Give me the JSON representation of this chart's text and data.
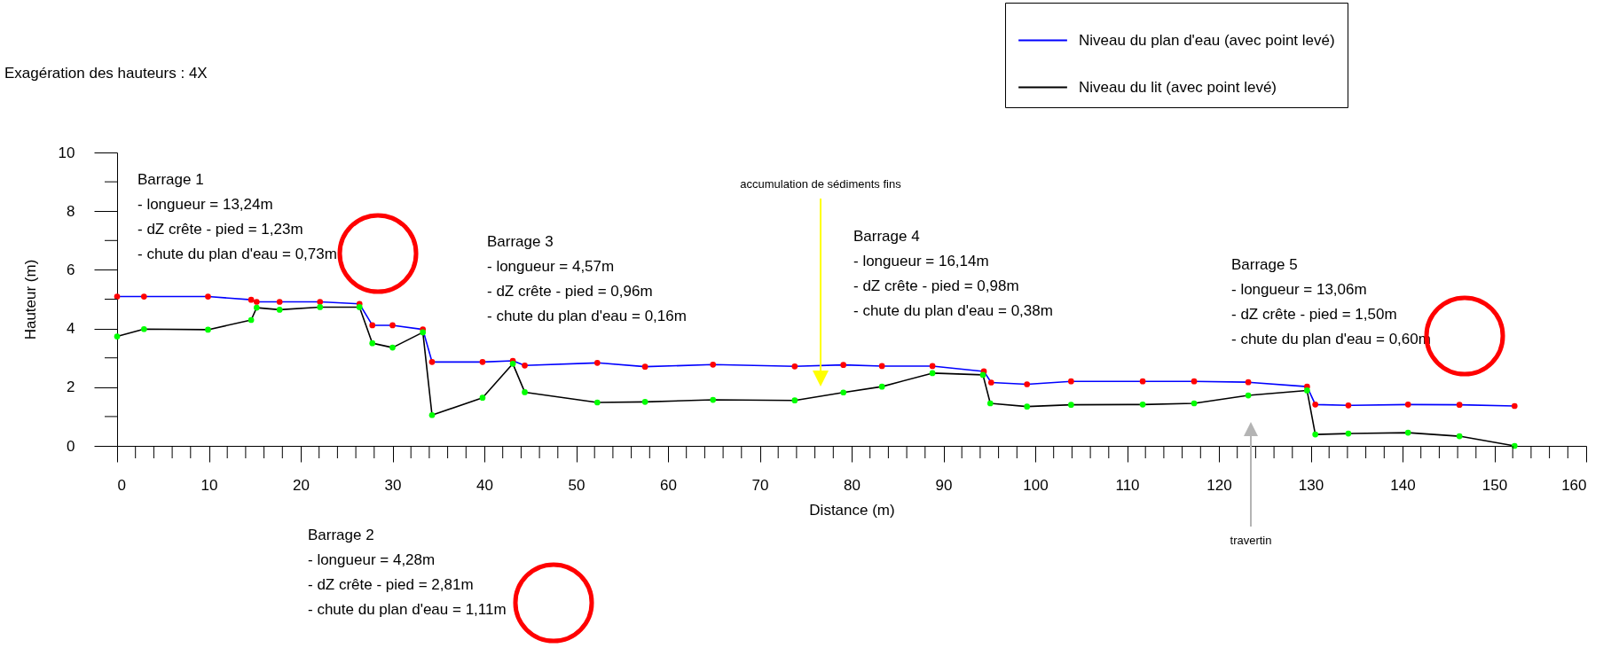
{
  "chart_data": {
    "type": "line",
    "subtitle": "Exagération des hauteurs : 4X",
    "xlabel": "Distance (m)",
    "ylabel": "Hauteur (m)",
    "xlim": [
      0,
      160
    ],
    "ylim": [
      0,
      10
    ],
    "xticks": [
      0,
      {
        "value": 2,
        "label": null
      },
      {
        "value": 4,
        "label": null
      },
      {
        "value": 6,
        "label": null
      },
      {
        "value": 8,
        "label": null
      },
      10,
      {
        "value": 12,
        "label": null
      },
      {
        "value": 14,
        "label": null
      },
      {
        "value": 16,
        "label": null
      },
      {
        "value": 18,
        "label": null
      },
      20,
      {
        "value": 22,
        "label": null
      },
      {
        "value": 24,
        "label": null
      },
      {
        "value": 26,
        "label": null
      },
      {
        "value": 28,
        "label": null
      },
      30,
      {
        "value": 32,
        "label": null
      },
      {
        "value": 34,
        "label": null
      },
      {
        "value": 36,
        "label": null
      },
      {
        "value": 38,
        "label": null
      },
      40,
      {
        "value": 42,
        "label": null
      },
      {
        "value": 44,
        "label": null
      },
      {
        "value": 46,
        "label": null
      },
      {
        "value": 48,
        "label": null
      },
      50,
      {
        "value": 52,
        "label": null
      },
      {
        "value": 54,
        "label": null
      },
      {
        "value": 56,
        "label": null
      },
      {
        "value": 58,
        "label": null
      },
      60,
      {
        "value": 62,
        "label": null
      },
      {
        "value": 64,
        "label": null
      },
      {
        "value": 66,
        "label": null
      },
      {
        "value": 68,
        "label": null
      },
      70,
      {
        "value": 72,
        "label": null
      },
      {
        "value": 74,
        "label": null
      },
      {
        "value": 76,
        "label": null
      },
      {
        "value": 78,
        "label": null
      },
      80,
      {
        "value": 82,
        "label": null
      },
      {
        "value": 84,
        "label": null
      },
      {
        "value": 86,
        "label": null
      },
      {
        "value": 88,
        "label": null
      },
      90,
      {
        "value": 92,
        "label": null
      },
      {
        "value": 94,
        "label": null
      },
      {
        "value": 96,
        "label": null
      },
      {
        "value": 98,
        "label": null
      },
      100,
      {
        "value": 102,
        "label": null
      },
      {
        "value": 104,
        "label": null
      },
      {
        "value": 106,
        "label": null
      },
      {
        "value": 108,
        "label": null
      },
      110,
      {
        "value": 112,
        "label": null
      },
      {
        "value": 114,
        "label": null
      },
      {
        "value": 116,
        "label": null
      },
      {
        "value": 118,
        "label": null
      },
      120,
      {
        "value": 122,
        "label": null
      },
      {
        "value": 124,
        "label": null
      },
      {
        "value": 126,
        "label": null
      },
      {
        "value": 128,
        "label": null
      },
      130,
      {
        "value": 132,
        "label": null
      },
      {
        "value": 134,
        "label": null
      },
      {
        "value": 136,
        "label": null
      },
      {
        "value": 138,
        "label": null
      },
      140,
      {
        "value": 142,
        "label": null
      },
      {
        "value": 144,
        "label": null
      },
      {
        "value": 146,
        "label": null
      },
      {
        "value": 148,
        "label": null
      },
      150,
      {
        "value": 152,
        "label": null
      },
      {
        "value": 154,
        "label": null
      },
      {
        "value": 156,
        "label": null
      },
      {
        "value": 158,
        "label": null
      },
      160
    ],
    "yticks": [
      0,
      {
        "value": 1,
        "label": null
      },
      2,
      {
        "value": 3,
        "label": null
      },
      4,
      {
        "value": 5,
        "label": null
      },
      6,
      {
        "value": 7,
        "label": null
      },
      8,
      {
        "value": 9,
        "label": null
      },
      10
    ],
    "grid": false,
    "legend": "top right",
    "marker": "circle",
    "line_style": "solid",
    "series": [
      {
        "name": "Niveau du plan d'eau (avec point levé)",
        "color": "#0000ff",
        "x": [
          0,
          2.93,
          9.9,
          14.6,
          15.2,
          17.7,
          22.1,
          26.4,
          27.8,
          30.0,
          33.3,
          34.3,
          39.8,
          43.1,
          44.4,
          52.3,
          57.5,
          64.9,
          73.8,
          79.1,
          83.3,
          88.8,
          94.4,
          95.2,
          99.1,
          103.9,
          111.7,
          117.3,
          123.2,
          129.6,
          130.5,
          134.1,
          140.6,
          146.2,
          152.2
        ],
        "values": [
          5.09,
          5.09,
          5.09,
          4.98,
          4.91,
          4.91,
          4.91,
          4.84,
          4.11,
          4.11,
          3.97,
          2.86,
          2.86,
          2.9,
          2.74,
          2.83,
          2.7,
          2.77,
          2.71,
          2.76,
          2.72,
          2.72,
          2.54,
          2.16,
          2.1,
          2.2,
          2.2,
          2.2,
          2.17,
          2.02,
          1.41,
          1.38,
          1.41,
          1.4,
          1.36
        ],
        "colors": [
          "#ff0000",
          "#ff0000",
          "#ff0000",
          "#ff0000",
          "#ff0000",
          "#ff0000",
          "#ff0000",
          "#ff0000",
          "#ff0000",
          "#ff0000",
          "#ff0000",
          "#ff0000",
          "#ff0000",
          "#ff0000",
          "#ff0000",
          "#ff0000",
          "#ff0000",
          "#ff0000",
          "#ff0000",
          "#ff0000",
          "#ff0000",
          "#ff0000",
          "#ff0000",
          "#ff0000",
          "#ff0000",
          "#ff0000",
          "#ff0000",
          "#ff0000",
          "#ff0000",
          "#ff0000",
          "#ff0000",
          "#ff0000",
          "#ff0000",
          "#ff0000",
          "#ff0000"
        ]
      },
      {
        "name": "Niveau du lit (avec point levé)",
        "color": "#000000",
        "x": [
          0,
          2.93,
          9.9,
          14.6,
          15.2,
          17.7,
          22.1,
          26.4,
          27.8,
          30.0,
          33.3,
          34.3,
          39.8,
          43.1,
          44.4,
          52.3,
          57.5,
          64.9,
          73.8,
          79.1,
          83.3,
          88.8,
          94.3,
          95.1,
          99.1,
          103.9,
          111.7,
          117.3,
          123.2,
          129.6,
          130.5,
          134.1,
          140.6,
          146.2,
          152.2
        ],
        "values": [
          3.73,
          3.98,
          3.96,
          4.29,
          4.71,
          4.64,
          4.73,
          4.73,
          3.5,
          3.35,
          3.87,
          1.05,
          1.64,
          2.8,
          1.83,
          1.48,
          1.5,
          1.57,
          1.55,
          1.82,
          2.02,
          2.48,
          2.42,
          1.45,
          1.34,
          1.4,
          1.41,
          1.45,
          1.72,
          1.89,
          0.39,
          0.42,
          0.45,
          0.33,
          0
        ],
        "colors": [
          "#00ff00",
          "#00ff00",
          "#00ff00",
          "#00ff00",
          "#00ff00",
          "#00ff00",
          "#00ff00",
          "#00ff00",
          "#00ff00",
          "#00ff00",
          "#00ff00",
          "#00ff00",
          "#00ff00",
          "#00ff00",
          "#00ff00",
          "#00ff00",
          "#00ff00",
          "#00ff00",
          "#00ff00",
          "#00ff00",
          "#00ff00",
          "#00ff00",
          "#00ff00",
          "#00ff00",
          "#00ff00",
          "#00ff00",
          "#00ff00",
          "#00ff00",
          "#00ff00",
          "#00ff00",
          "#00ff00",
          "#00ff00",
          "#00ff00",
          "#00ff00",
          "#00ff00"
        ]
      }
    ],
    "annotations": [
      "Barrage 1",
      "- longueur = 13,24m",
      "- dZ crête - pied = 1,23m",
      "- chute du plan d'eau = 0,73m",
      "Barrage 2",
      "- longueur = 4,28m",
      "- dZ crête - pied = 2,81m",
      "- chute du plan d'eau = 1,11m",
      "Barrage 3",
      "- longueur = 4,57m",
      "- dZ crête - pied = 0,96m",
      "- chute du plan d'eau = 0,16m",
      "Barrage 4",
      "- longueur = 16,14m",
      "- dZ crête - pied = 0,98m",
      "- chute du plan d'eau = 0,38m",
      "Barrage 5",
      "- longueur = 13,06m",
      "- dZ crête - pied = 1,50m",
      "- chute du plan d'eau = 0,60m",
      "accumulation de sédiments fins",
      "travertin"
    ]
  }
}
